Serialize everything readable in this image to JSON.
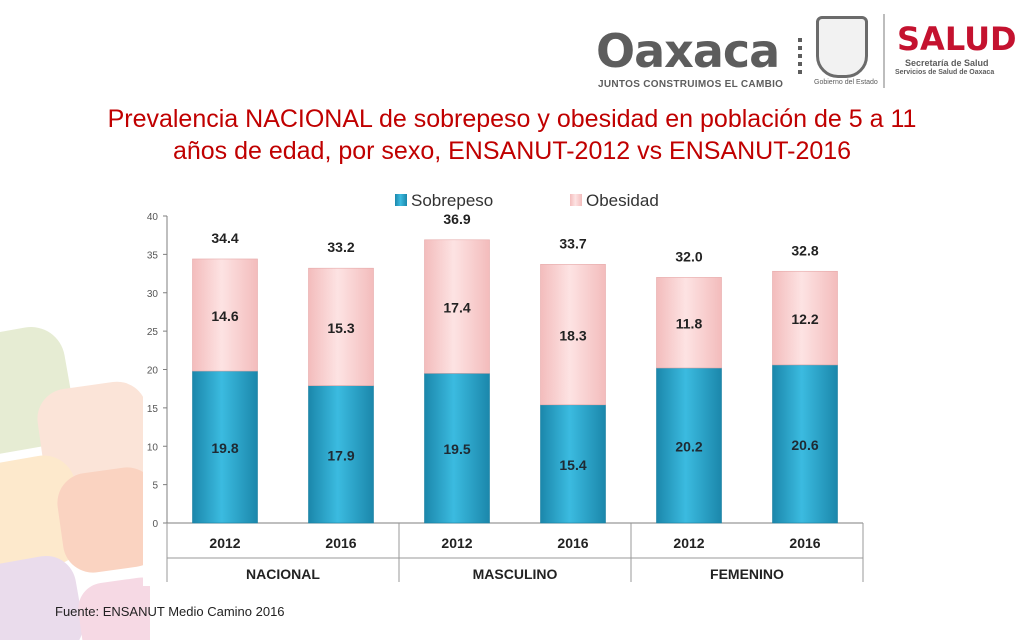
{
  "header": {
    "logo_oaxaca": "Oaxaca",
    "logo_oaxaca_tagline": "JUNTOS CONSTRUIMOS EL CAMBIO",
    "seal_caption": "Gobierno del Estado",
    "logo_salud": "SALUD",
    "salud_line1": "Secretaría de Salud",
    "salud_line2": "Servicios de Salud de Oaxaca"
  },
  "title_line1": "Prevalencia  NACIONAL de sobrepeso y obesidad en población de 5 a 11",
  "title_line2": "años de edad, por sexo, ENSANUT-2012 vs ENSANUT-2016",
  "source": "Fuente: ENSANUT Medio Camino 2016",
  "colors": {
    "title": "#c00000",
    "sobrepeso": "#2aa9cf",
    "obesidad": "#fbd3d3"
  },
  "chart_data": {
    "type": "bar",
    "stacked": true,
    "categories": [
      "2012",
      "2016",
      "2012",
      "2016",
      "2012",
      "2016"
    ],
    "groups": [
      "NACIONAL",
      "MASCULINO",
      "FEMENINO"
    ],
    "series": [
      {
        "name": "Sobrepeso",
        "values": [
          19.8,
          17.9,
          19.5,
          15.4,
          20.2,
          20.6
        ]
      },
      {
        "name": "Obesidad",
        "values": [
          14.6,
          15.3,
          17.4,
          18.3,
          11.8,
          12.2
        ]
      }
    ],
    "totals": [
      34.4,
      33.2,
      36.9,
      33.7,
      32.0,
      32.8
    ],
    "total_labels": [
      "34.4",
      "33.2",
      "36.9",
      "33.7",
      "32.0",
      "32.8"
    ],
    "ylim": [
      0,
      40
    ],
    "yticks": [
      "0",
      "5",
      "10",
      "15",
      "20",
      "25",
      "30",
      "35",
      "40"
    ],
    "legend": "top-center",
    "grid": false
  }
}
